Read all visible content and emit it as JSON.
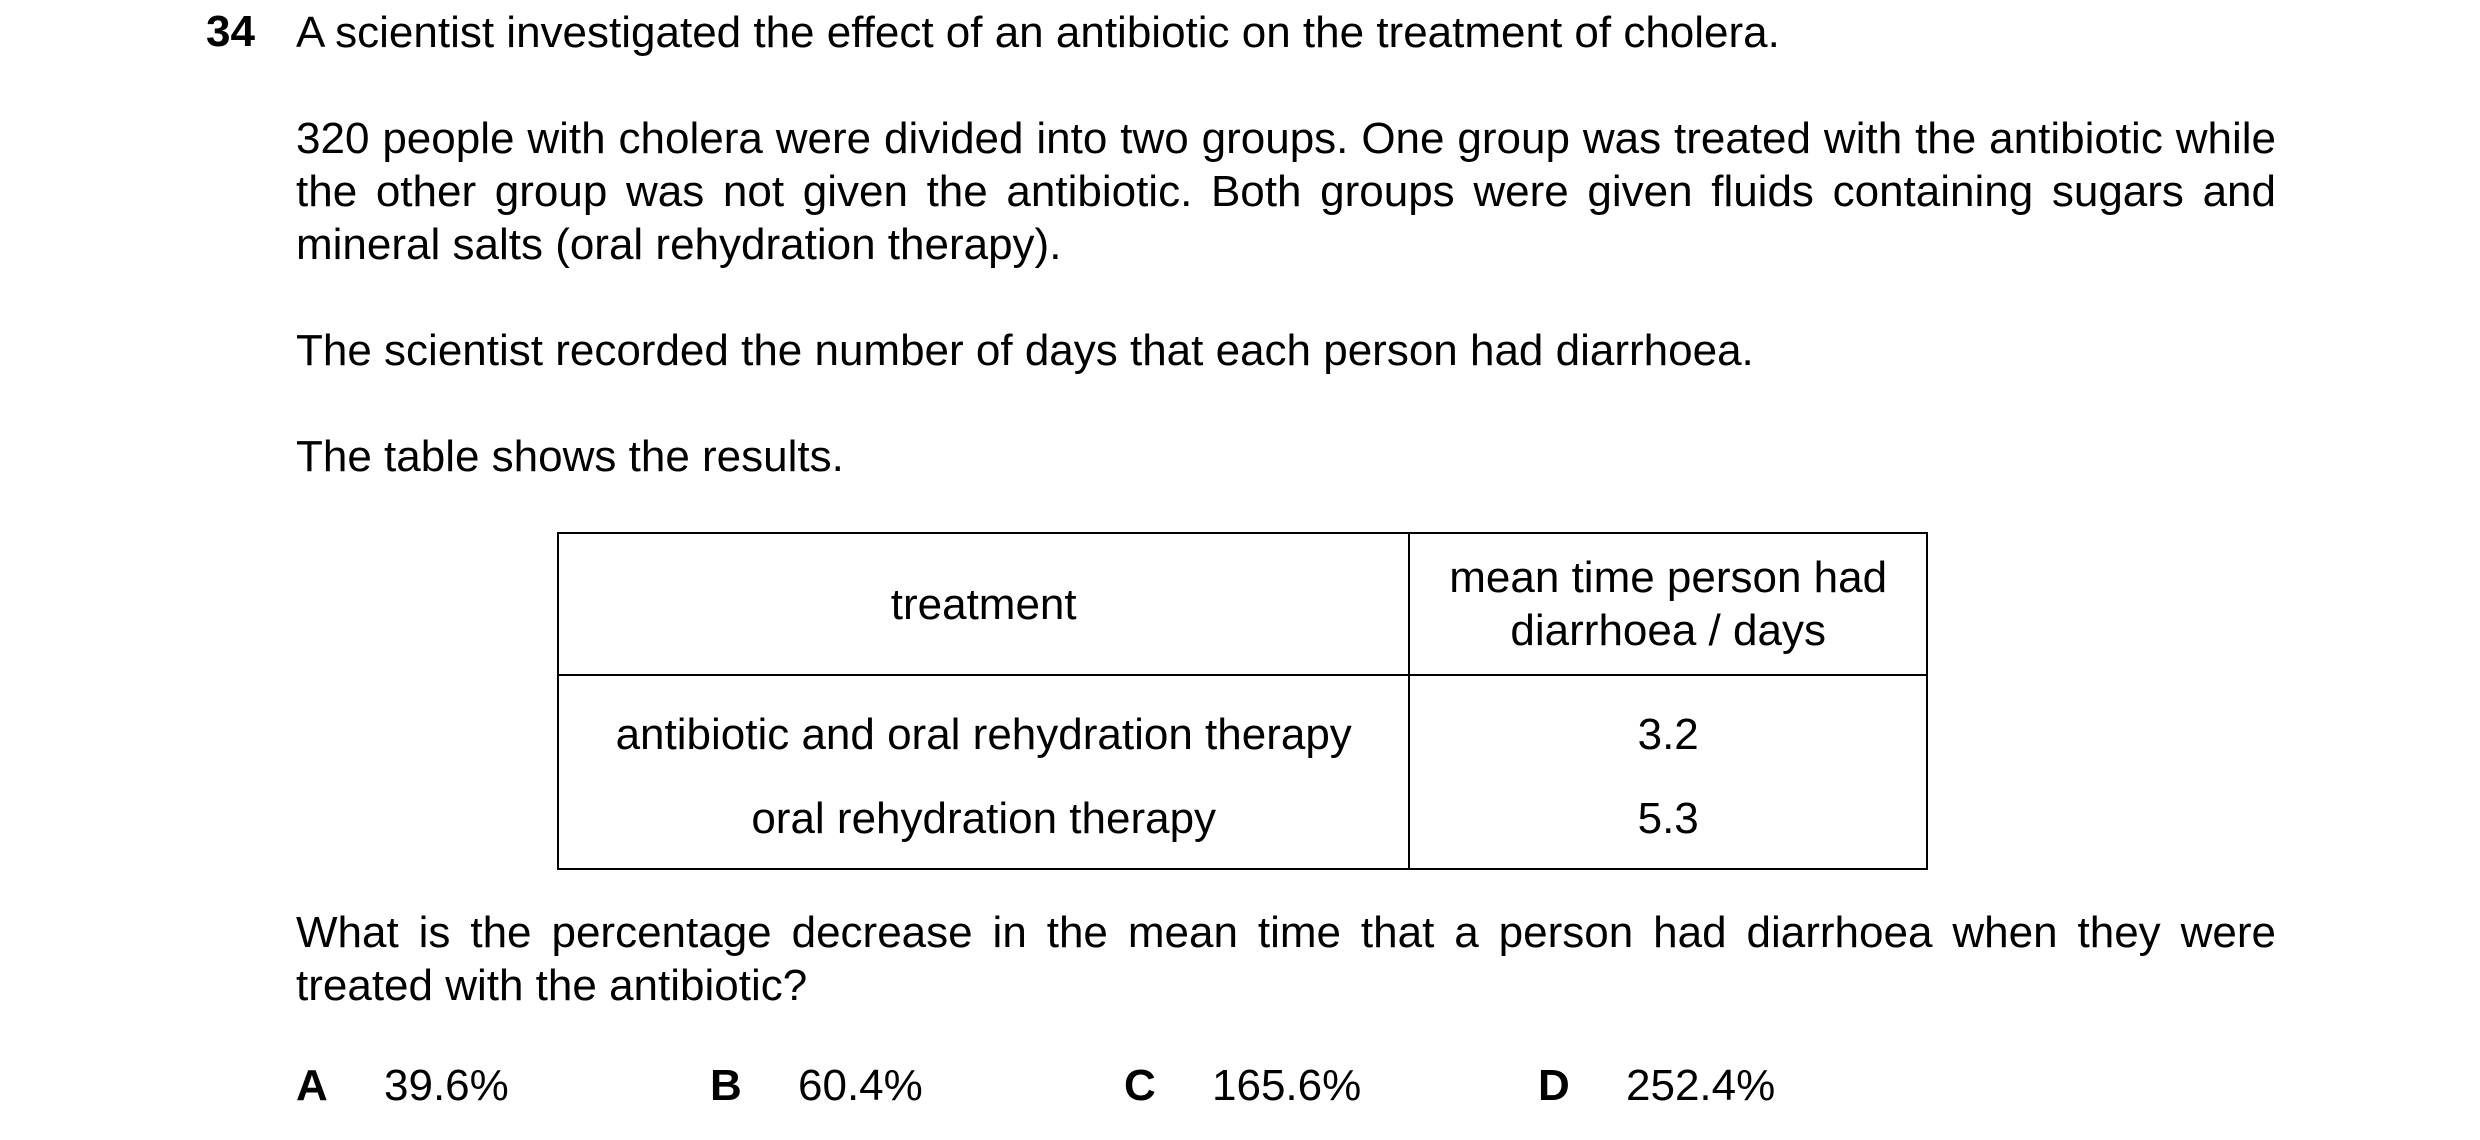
{
  "question": {
    "number": "34",
    "intro": "A scientist investigated the effect of an antibiotic on the treatment of cholera.",
    "setup": "320 people with cholera were divided into two groups. One group was treated with the antibiotic while the other group was not given the antibiotic. Both groups were given fluids containing sugars and mineral salts (oral rehydration therapy).",
    "recorded": "The scientist recorded the number of days that each person had diarrhoea.",
    "results_intro": "The table shows the results.",
    "prompt": "What is the percentage decrease in the mean time that a person had diarrhoea when they were treated with the antibiotic?"
  },
  "table": {
    "headers": {
      "treatment": "treatment",
      "mean_line1": "mean time person had",
      "mean_line2": "diarrhoea / days"
    },
    "rows": [
      {
        "treatment": "antibiotic and oral rehydration therapy",
        "mean": "3.2"
      },
      {
        "treatment": "oral rehydration therapy",
        "mean": "5.3"
      }
    ]
  },
  "options": [
    {
      "letter": "A",
      "value": "39.6%"
    },
    {
      "letter": "B",
      "value": "60.4%"
    },
    {
      "letter": "C",
      "value": "165.6%"
    },
    {
      "letter": "D",
      "value": "252.4%"
    }
  ]
}
